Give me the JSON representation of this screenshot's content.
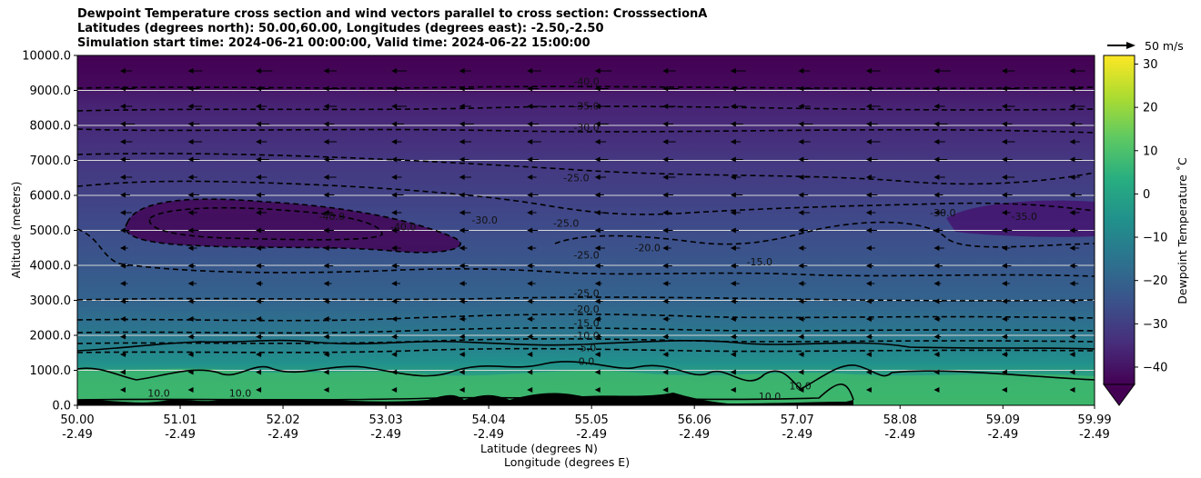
{
  "chart_data": {
    "type": "heatmap",
    "title_lines": [
      "Dewpoint Temperature cross section and wind vectors parallel to cross section: CrosssectionA",
      "Latitudes (degrees north): 50.00,60.00, Longitudes (degrees east): -2.50,-2.50",
      "Simulation start time: 2024-06-21 00:00:00, Valid time: 2024-06-22 15:00:00"
    ],
    "xlabel": "Latitude (degrees N)",
    "xlabel2": "Longitude (degrees E)",
    "ylabel": "Altitude (meters)",
    "x_ticks_lat": [
      "50.00",
      "51.01",
      "52.02",
      "53.03",
      "54.04",
      "55.05",
      "56.06",
      "57.07",
      "58.08",
      "59.09",
      "59.99"
    ],
    "x_ticks_lat_values": [
      50.0,
      51.01,
      52.02,
      53.03,
      54.04,
      55.05,
      56.06,
      57.07,
      58.08,
      59.09,
      59.99
    ],
    "x_ticks_lon": [
      "-2.49",
      "-2.49",
      "-2.49",
      "-2.49",
      "-2.49",
      "-2.49",
      "-2.49",
      "-2.49",
      "-2.49",
      "-2.49",
      "-2.49"
    ],
    "xlim": [
      50.0,
      59.99
    ],
    "y_ticks": [
      "0.0",
      "1000.0",
      "2000.0",
      "3000.0",
      "4000.0",
      "5000.0",
      "6000.0",
      "7000.0",
      "8000.0",
      "9000.0",
      "10000.0"
    ],
    "ylim": [
      0,
      10000
    ],
    "grid": "horizontal",
    "colorbar": {
      "label": "Dewpoint Temperature $^\\circ$C",
      "label_text": "Dewpoint Temperature ˚C",
      "ticks": [
        "−40",
        "−30",
        "−20",
        "−10",
        "0",
        "10",
        "20",
        "30"
      ],
      "tick_values": [
        -40,
        -30,
        -20,
        -10,
        0,
        10,
        20,
        30
      ],
      "range": [
        -44,
        32
      ],
      "extend": "min",
      "colormap": "viridis"
    },
    "reference_vector": {
      "label": "50 m/s",
      "speed": 50
    },
    "contour_labels": [
      {
        "text": "-40.0",
        "lat": 55.0,
        "alt": 9150
      },
      {
        "text": "-35.0",
        "lat": 55.0,
        "alt": 8450
      },
      {
        "text": "-30.0",
        "lat": 55.0,
        "alt": 7850
      },
      {
        "text": "-25.0",
        "lat": 54.9,
        "alt": 6400
      },
      {
        "text": "-30.0",
        "lat": 54.0,
        "alt": 5200
      },
      {
        "text": "-40.0",
        "lat": 52.5,
        "alt": 5300
      },
      {
        "text": "-40.0",
        "lat": 53.2,
        "alt": 5000
      },
      {
        "text": "-25.0",
        "lat": 54.8,
        "alt": 5100
      },
      {
        "text": "-25.0",
        "lat": 55.0,
        "alt": 4200
      },
      {
        "text": "-20.0",
        "lat": 55.6,
        "alt": 4400
      },
      {
        "text": "-15.0",
        "lat": 56.7,
        "alt": 4000
      },
      {
        "text": "-30.0",
        "lat": 58.5,
        "alt": 5400
      },
      {
        "text": "-35.0",
        "lat": 59.3,
        "alt": 5300
      },
      {
        "text": "-25.0",
        "lat": 55.0,
        "alt": 3100
      },
      {
        "text": "-20.0",
        "lat": 55.0,
        "alt": 2650
      },
      {
        "text": "-15.0",
        "lat": 55.0,
        "alt": 2250
      },
      {
        "text": "-10.0",
        "lat": 55.0,
        "alt": 1900
      },
      {
        "text": "-5.0",
        "lat": 55.0,
        "alt": 1550
      },
      {
        "text": "0.0",
        "lat": 55.0,
        "alt": 1150
      },
      {
        "text": "10.0",
        "lat": 50.8,
        "alt": 250
      },
      {
        "text": "10.0",
        "lat": 51.6,
        "alt": 250
      },
      {
        "text": "10.0",
        "lat": 56.8,
        "alt": 150
      },
      {
        "text": "10.0",
        "lat": 57.1,
        "alt": 450
      }
    ]
  }
}
